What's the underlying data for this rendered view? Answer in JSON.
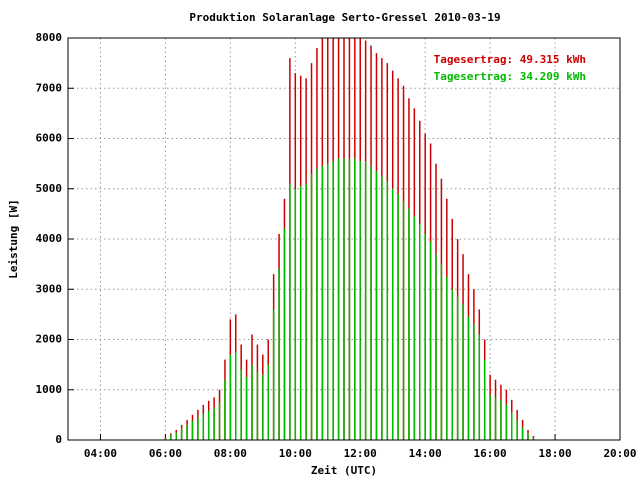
{
  "chart_data": {
    "type": "impulse",
    "title": "Produktion Solaranlage Serto-Gressel 2010-03-19",
    "xlabel": "Zeit (UTC)",
    "ylabel": "Leistung [W]",
    "xlim": [
      "03:00",
      "20:00"
    ],
    "xticks": [
      "04:00",
      "06:00",
      "08:00",
      "10:00",
      "12:00",
      "14:00",
      "16:00",
      "18:00",
      "20:00"
    ],
    "ylim": [
      0,
      8000
    ],
    "yticks": [
      0,
      1000,
      2000,
      3000,
      4000,
      5000,
      6000,
      7000,
      8000
    ],
    "grid": true,
    "legend": "top-right",
    "x": [
      "05:50",
      "06:00",
      "06:10",
      "06:20",
      "06:30",
      "06:40",
      "06:50",
      "07:00",
      "07:10",
      "07:20",
      "07:30",
      "07:40",
      "07:50",
      "08:00",
      "08:10",
      "08:20",
      "08:30",
      "08:40",
      "08:50",
      "09:00",
      "09:10",
      "09:20",
      "09:30",
      "09:40",
      "09:50",
      "10:00",
      "10:10",
      "10:20",
      "10:30",
      "10:40",
      "10:50",
      "11:00",
      "11:10",
      "11:20",
      "11:30",
      "11:40",
      "11:50",
      "12:00",
      "12:10",
      "12:20",
      "12:30",
      "12:40",
      "12:50",
      "13:00",
      "13:10",
      "13:20",
      "13:30",
      "13:40",
      "13:50",
      "14:00",
      "14:10",
      "14:20",
      "14:30",
      "14:40",
      "14:50",
      "15:00",
      "15:10",
      "15:20",
      "15:30",
      "15:40",
      "15:50",
      "16:00",
      "16:10",
      "16:20",
      "16:30",
      "16:40",
      "16:50",
      "17:00",
      "17:10",
      "17:20",
      "17:30"
    ],
    "series": [
      {
        "name": "Tagesertrag: 49.315 kWh",
        "color": "#cc0000",
        "values": [
          10,
          60,
          130,
          200,
          300,
          400,
          500,
          600,
          700,
          780,
          850,
          1000,
          1600,
          2400,
          2500,
          1900,
          1600,
          2100,
          1900,
          1700,
          2000,
          3300,
          4100,
          4800,
          7600,
          7300,
          7250,
          7200,
          7500,
          7800,
          8000,
          8000,
          8000,
          8000,
          8000,
          8000,
          8000,
          8000,
          7950,
          7850,
          7700,
          7600,
          7500,
          7350,
          7200,
          7050,
          6800,
          6600,
          6350,
          6100,
          5900,
          5500,
          5200,
          4800,
          4400,
          4000,
          3700,
          3300,
          3000,
          2600,
          2000,
          1300,
          1200,
          1100,
          1000,
          800,
          600,
          400,
          200,
          80,
          10
        ]
      },
      {
        "name": "Tagesertrag: 34.209 kWh",
        "color": "#00bb00",
        "values": [
          5,
          40,
          100,
          150,
          230,
          300,
          380,
          450,
          520,
          580,
          640,
          750,
          1200,
          1700,
          1750,
          1400,
          1250,
          1500,
          1350,
          1300,
          1500,
          2600,
          3400,
          4200,
          5100,
          5000,
          5050,
          5100,
          5300,
          5400,
          5450,
          5500,
          5550,
          5600,
          5600,
          5600,
          5600,
          5550,
          5550,
          5450,
          5350,
          5250,
          5150,
          5000,
          4900,
          4750,
          4600,
          4450,
          4300,
          4100,
          3950,
          3700,
          3500,
          3250,
          3000,
          2850,
          2700,
          2450,
          2300,
          2100,
          1600,
          900,
          850,
          800,
          700,
          550,
          400,
          250,
          130,
          50,
          5
        ]
      }
    ]
  }
}
